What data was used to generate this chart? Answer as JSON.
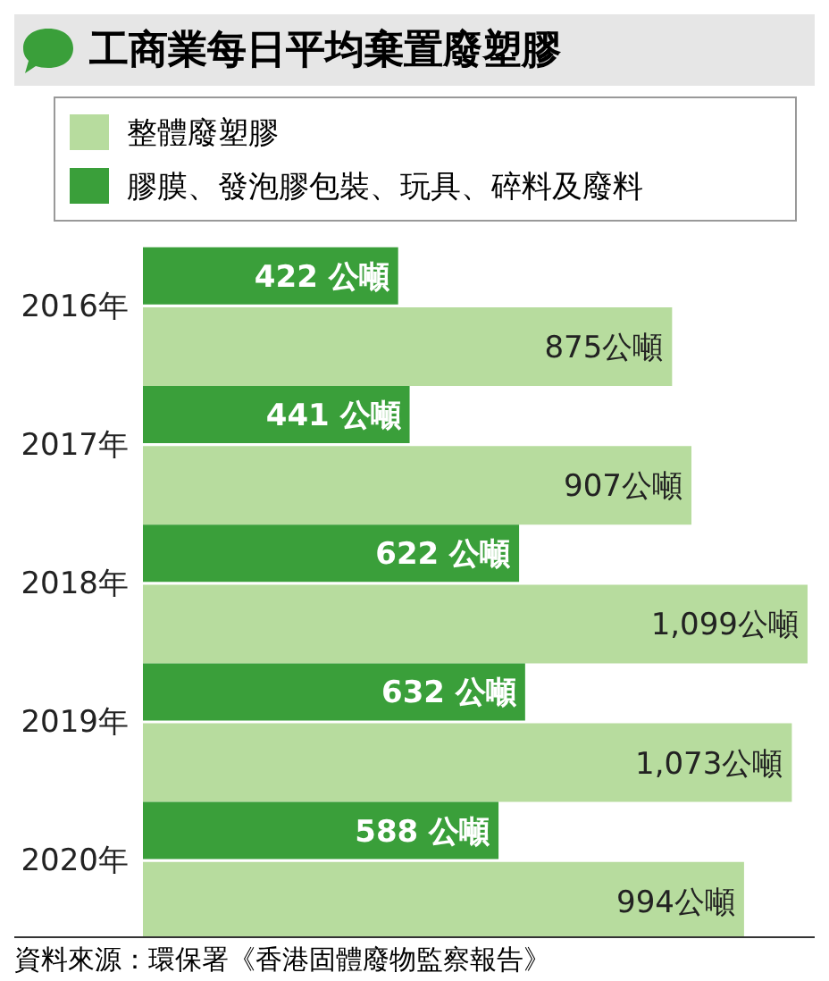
{
  "chart_data": {
    "type": "bar",
    "orientation": "horizontal",
    "title": "工商業每日平均棄置廢塑膠",
    "categories": [
      "2016年",
      "2017年",
      "2018年",
      "2019年",
      "2020年"
    ],
    "series": [
      {
        "name": "整體廢塑膠",
        "color": "#b7dc9e",
        "values": [
          875,
          907,
          1099,
          1073,
          994
        ],
        "value_labels": [
          "875公噸",
          "907公噸",
          "1,099公噸",
          "1,073公噸",
          "994公噸"
        ]
      },
      {
        "name": "膠膜、發泡膠包裝、玩具、碎料及廢料",
        "color": "#3a9f3a",
        "values": [
          422,
          441,
          622,
          632,
          588
        ],
        "value_labels": [
          "422 公噸",
          "441 公噸",
          "622 公噸",
          "632 公噸",
          "588 公噸"
        ]
      }
    ],
    "legend": "top",
    "annotations": [
      "資料來源：環保署《香港固體廢物監察報告》"
    ]
  }
}
